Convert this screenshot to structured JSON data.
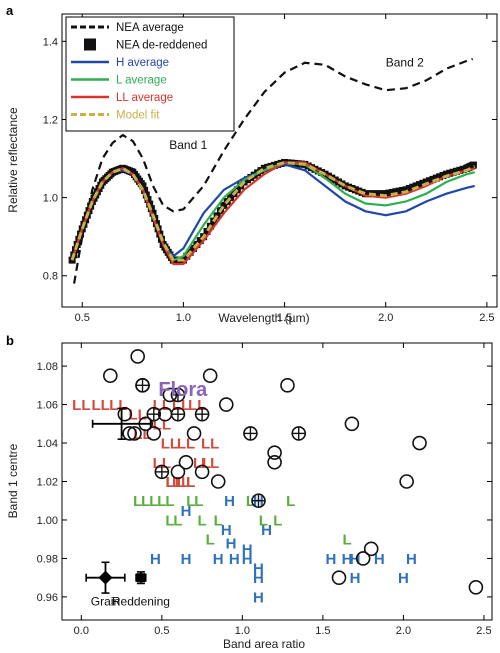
{
  "chart_data": [
    {
      "panel_label": "a",
      "type": "line",
      "xlabel": "Wavelength (µm)",
      "ylabel": "Relative reflectance",
      "xlim": [
        0.4,
        2.55
      ],
      "ylim": [
        0.72,
        1.47
      ],
      "xticks": [
        "0.5",
        "1.0",
        "1.5",
        "2.0",
        "2.5"
      ],
      "yticks": [
        "0.8",
        "1.0",
        "1.2",
        "1.4"
      ],
      "legend_position": "top-left",
      "annotations": [
        {
          "text": "Band 1",
          "x": 0.93,
          "y": 1.125
        },
        {
          "text": "Band 2",
          "x": 2.0,
          "y": 1.335
        }
      ],
      "series": [
        {
          "name": "NEA average",
          "style": "dashed",
          "color": "#111111",
          "x": [
            0.46,
            0.5,
            0.55,
            0.6,
            0.65,
            0.7,
            0.75,
            0.8,
            0.85,
            0.9,
            0.95,
            1.0,
            1.1,
            1.2,
            1.3,
            1.4,
            1.5,
            1.6,
            1.7,
            1.8,
            1.9,
            2.0,
            2.1,
            2.2,
            2.3,
            2.4,
            2.43
          ],
          "y": [
            0.78,
            0.9,
            1.02,
            1.1,
            1.14,
            1.16,
            1.145,
            1.1,
            1.03,
            0.98,
            0.965,
            0.97,
            1.03,
            1.12,
            1.2,
            1.27,
            1.32,
            1.345,
            1.34,
            1.31,
            1.29,
            1.275,
            1.28,
            1.3,
            1.33,
            1.35,
            1.355
          ]
        },
        {
          "name": "NEA de-reddened",
          "style": "squares",
          "color": "#111111",
          "x": [
            0.45,
            0.5,
            0.55,
            0.6,
            0.65,
            0.7,
            0.75,
            0.8,
            0.85,
            0.9,
            0.95,
            1.0,
            1.1,
            1.2,
            1.3,
            1.4,
            1.5,
            1.6,
            1.7,
            1.8,
            1.9,
            2.0,
            2.1,
            2.2,
            2.3,
            2.4,
            2.44
          ],
          "y": [
            0.84,
            0.92,
            0.99,
            1.04,
            1.065,
            1.075,
            1.065,
            1.03,
            0.96,
            0.88,
            0.84,
            0.84,
            0.9,
            0.98,
            1.04,
            1.075,
            1.09,
            1.085,
            1.06,
            1.03,
            1.01,
            1.01,
            1.02,
            1.04,
            1.06,
            1.075,
            1.085
          ]
        },
        {
          "name": "H average",
          "style": "solid",
          "color": "#2148a8",
          "x": [
            0.45,
            0.5,
            0.55,
            0.6,
            0.65,
            0.7,
            0.75,
            0.8,
            0.85,
            0.9,
            0.95,
            1.0,
            1.1,
            1.2,
            1.3,
            1.4,
            1.5,
            1.6,
            1.7,
            1.8,
            1.9,
            2.0,
            2.1,
            2.2,
            2.3,
            2.4,
            2.44
          ],
          "y": [
            0.84,
            0.92,
            0.99,
            1.04,
            1.065,
            1.07,
            1.06,
            1.02,
            0.95,
            0.88,
            0.85,
            0.87,
            0.96,
            1.02,
            1.05,
            1.07,
            1.085,
            1.07,
            1.03,
            0.99,
            0.965,
            0.955,
            0.965,
            0.99,
            1.01,
            1.025,
            1.03
          ]
        },
        {
          "name": "L average",
          "style": "solid",
          "color": "#2fae52",
          "x": [
            0.45,
            0.5,
            0.55,
            0.6,
            0.65,
            0.7,
            0.75,
            0.8,
            0.85,
            0.9,
            0.95,
            1.0,
            1.1,
            1.2,
            1.3,
            1.4,
            1.5,
            1.6,
            1.7,
            1.8,
            1.9,
            2.0,
            2.1,
            2.2,
            2.3,
            2.4,
            2.44
          ],
          "y": [
            0.84,
            0.92,
            0.99,
            1.04,
            1.065,
            1.075,
            1.06,
            1.02,
            0.95,
            0.88,
            0.84,
            0.85,
            0.93,
            1.0,
            1.045,
            1.07,
            1.09,
            1.085,
            1.05,
            1.01,
            0.985,
            0.98,
            0.99,
            1.01,
            1.04,
            1.06,
            1.065
          ]
        },
        {
          "name": "LL average",
          "style": "solid",
          "color": "#d9342b",
          "x": [
            0.45,
            0.5,
            0.55,
            0.6,
            0.65,
            0.7,
            0.75,
            0.8,
            0.85,
            0.9,
            0.95,
            1.0,
            1.1,
            1.2,
            1.3,
            1.4,
            1.5,
            1.6,
            1.7,
            1.8,
            1.9,
            2.0,
            2.1,
            2.2,
            2.3,
            2.4,
            2.44
          ],
          "y": [
            0.84,
            0.92,
            0.99,
            1.04,
            1.065,
            1.075,
            1.06,
            1.02,
            0.95,
            0.88,
            0.83,
            0.83,
            0.89,
            0.96,
            1.02,
            1.06,
            1.09,
            1.09,
            1.06,
            1.03,
            1.005,
            1.0,
            1.01,
            1.03,
            1.055,
            1.07,
            1.075
          ]
        },
        {
          "name": "Model fit",
          "style": "dashed",
          "color": "#c8b04a",
          "x": [
            0.45,
            0.5,
            0.55,
            0.6,
            0.65,
            0.7,
            0.75,
            0.8,
            0.85,
            0.9,
            0.95,
            1.0,
            1.1,
            1.2,
            1.3,
            1.4,
            1.5,
            1.6,
            1.7,
            1.8,
            1.9,
            2.0,
            2.1,
            2.2,
            2.3,
            2.4,
            2.44
          ],
          "y": [
            0.84,
            0.92,
            0.99,
            1.04,
            1.065,
            1.075,
            1.06,
            1.02,
            0.955,
            0.885,
            0.84,
            0.84,
            0.9,
            0.98,
            1.04,
            1.075,
            1.09,
            1.085,
            1.06,
            1.03,
            1.01,
            1.005,
            1.015,
            1.035,
            1.055,
            1.07,
            1.08
          ]
        }
      ]
    },
    {
      "panel_label": "b",
      "type": "scatter",
      "xlabel": "Band area ratio",
      "ylabel": "Band 1 centre",
      "xlim": [
        -0.12,
        2.55
      ],
      "ylim": [
        0.948,
        1.092
      ],
      "xticks": [
        "0.0",
        "0.5",
        "1.0",
        "1.5",
        "2.0",
        "2.5"
      ],
      "yticks": [
        "0.96",
        "0.98",
        "1.00",
        "1.02",
        "1.04",
        "1.06",
        "1.08"
      ],
      "flora_label": "Flora",
      "flora_position": [
        0.63,
        1.068
      ],
      "error_bars": [
        {
          "label": "Grain",
          "x": 0.15,
          "y": 0.97,
          "xerr": 0.12,
          "yerr": 0.008
        },
        {
          "label": "Reddening",
          "x": 0.37,
          "y": 0.97,
          "xerr": 0.03,
          "yerr": 0.003
        },
        {
          "label": "",
          "x": 0.25,
          "y": 1.05,
          "xerr": 0.18,
          "yerr": 0.008
        }
      ],
      "series": [
        {
          "name": "H",
          "color": "#2f72b8",
          "points": [
            [
              0.65,
              1.005
            ],
            [
              0.92,
              1.01
            ],
            [
              1.1,
              1.01
            ],
            [
              0.9,
              0.995
            ],
            [
              1.15,
              0.995
            ],
            [
              0.93,
              0.988
            ],
            [
              1.03,
              0.985
            ],
            [
              0.46,
              0.98
            ],
            [
              0.65,
              0.98
            ],
            [
              0.85,
              0.98
            ],
            [
              0.95,
              0.98
            ],
            [
              1.03,
              0.98
            ],
            [
              1.1,
              0.975
            ],
            [
              1.55,
              0.98
            ],
            [
              1.65,
              0.98
            ],
            [
              1.7,
              0.98
            ],
            [
              1.85,
              0.98
            ],
            [
              2.05,
              0.98
            ],
            [
              1.1,
              0.97
            ],
            [
              1.7,
              0.97
            ],
            [
              2.0,
              0.97
            ],
            [
              1.1,
              0.96
            ]
          ]
        },
        {
          "name": "L",
          "color": "#5aae3c",
          "points": [
            [
              0.55,
              1.02
            ],
            [
              0.68,
              1.02
            ],
            [
              0.35,
              1.01
            ],
            [
              0.4,
              1.01
            ],
            [
              0.45,
              1.01
            ],
            [
              0.5,
              1.01
            ],
            [
              0.55,
              1.01
            ],
            [
              0.68,
              1.01
            ],
            [
              0.73,
              1.01
            ],
            [
              1.05,
              1.01
            ],
            [
              1.3,
              1.01
            ],
            [
              0.55,
              1.0
            ],
            [
              0.6,
              1.0
            ],
            [
              0.75,
              1.0
            ],
            [
              0.85,
              1.0
            ],
            [
              1.13,
              1.0
            ],
            [
              1.22,
              1.0
            ],
            [
              0.8,
              0.99
            ],
            [
              1.65,
              0.99
            ]
          ]
        },
        {
          "name": "LL",
          "color": "#d44a3c",
          "points": [
            [
              0.0,
              1.06
            ],
            [
              0.12,
              1.06
            ],
            [
              0.23,
              1.06
            ],
            [
              0.5,
              1.06
            ],
            [
              0.62,
              1.06
            ],
            [
              0.72,
              1.06
            ],
            [
              0.35,
              1.055
            ],
            [
              0.38,
              1.045
            ],
            [
              0.5,
              1.05
            ],
            [
              0.55,
              1.04
            ],
            [
              0.8,
              1.04
            ],
            [
              0.75,
              1.03
            ],
            [
              0.5,
              1.03
            ],
            [
              0.58,
              1.02
            ],
            [
              0.62,
              1.02
            ],
            [
              0.65,
              1.02
            ],
            [
              0.8,
              1.03
            ],
            [
              0.65,
              1.04
            ]
          ]
        },
        {
          "name": "NEA",
          "color": "#111111",
          "points": [
            [
              0.18,
              1.075
            ],
            [
              0.35,
              1.085
            ],
            [
              0.8,
              1.075
            ],
            [
              0.38,
              1.07
            ],
            [
              0.55,
              1.065
            ],
            [
              0.9,
              1.06
            ],
            [
              0.27,
              1.055
            ],
            [
              0.45,
              1.045
            ],
            [
              0.52,
              1.055
            ],
            [
              0.7,
              1.045
            ],
            [
              0.3,
              1.045
            ],
            [
              0.33,
              1.045
            ],
            [
              0.4,
              1.05
            ],
            [
              0.65,
              1.03
            ],
            [
              0.6,
              1.025
            ],
            [
              0.75,
              1.025
            ],
            [
              0.85,
              1.02
            ],
            [
              1.2,
              1.035
            ],
            [
              1.28,
              1.07
            ],
            [
              1.68,
              1.05
            ],
            [
              2.1,
              1.04
            ],
            [
              2.02,
              1.02
            ],
            [
              1.8,
              0.985
            ],
            [
              1.75,
              0.98
            ],
            [
              1.6,
              0.97
            ],
            [
              2.45,
              0.965
            ],
            [
              1.2,
              1.03
            ]
          ]
        },
        {
          "name": "NEA (crossed)",
          "color": "#111111",
          "points": [
            [
              0.38,
              1.07
            ],
            [
              0.6,
              1.065
            ],
            [
              0.75,
              1.055
            ],
            [
              0.6,
              1.055
            ],
            [
              0.45,
              1.055
            ],
            [
              1.05,
              1.045
            ],
            [
              1.35,
              1.045
            ],
            [
              0.5,
              1.025
            ],
            [
              1.1,
              1.01
            ]
          ]
        }
      ]
    }
  ]
}
